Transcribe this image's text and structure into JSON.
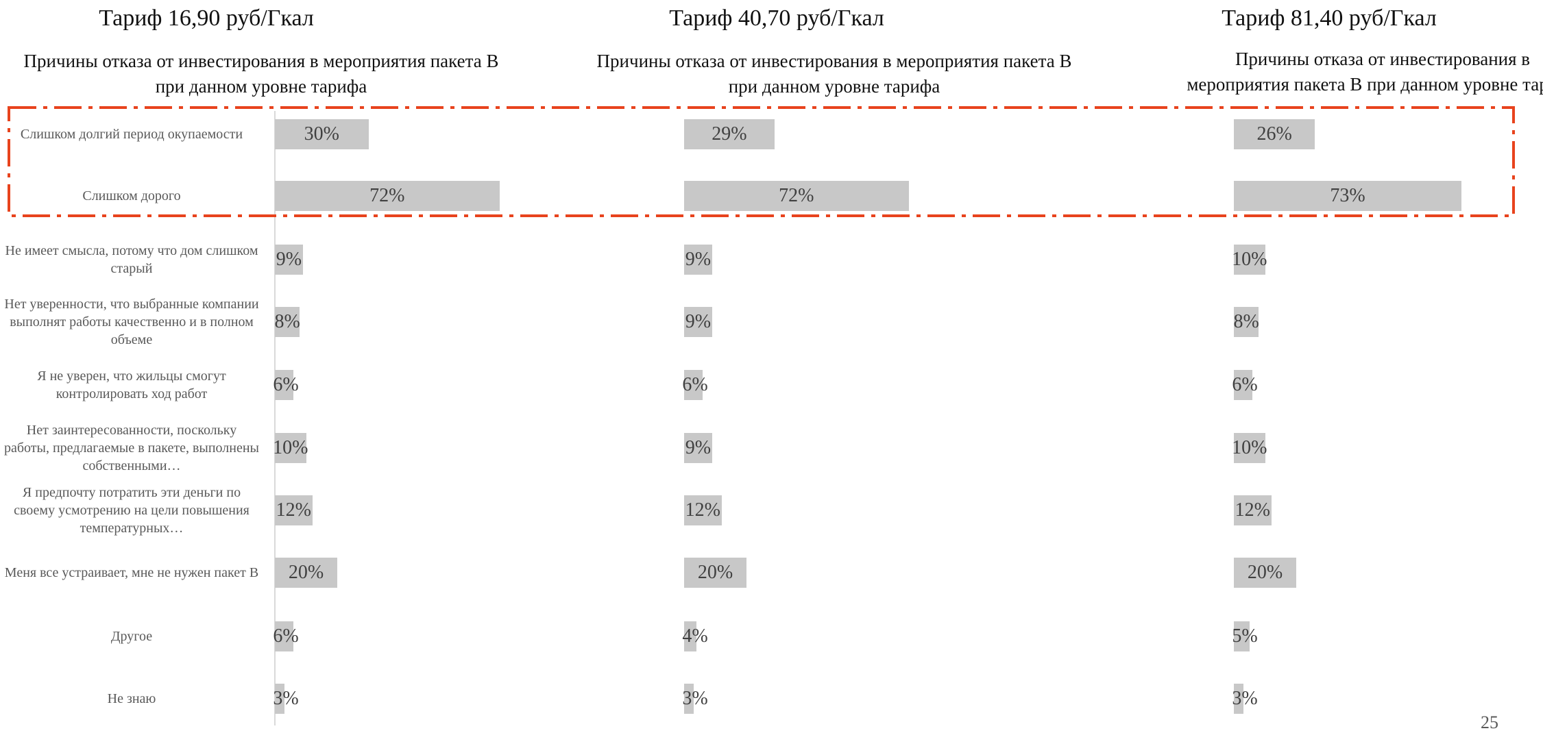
{
  "chart_data": [
    {
      "type": "bar",
      "orientation": "horizontal",
      "title": "Тариф 16,90 руб/Гкал",
      "subtitle": "Причины отказа от инвестирования в мероприятия пакета В при данном уровне тарифа",
      "categories": [
        "Слишком долгий период окупаемости",
        "Слишком дорого",
        "Не имеет смысла, потому что дом слишком старый",
        "Нет уверенности, что выбранные компании выполнят работы качественно и в полном объеме",
        "Я не уверен, что жильцы смогут контролировать ход работ",
        "Нет заинтересованности, поскольку работы, предлагаемые в пакете, выполнены собственными…",
        "Я предпочту потратить эти деньги по своему усмотрению на цели повышения температурных…",
        "Меня все устраивает, мне не нужен пакет  В",
        "Другое",
        "Не знаю"
      ],
      "values": [
        30,
        72,
        9,
        8,
        6,
        10,
        12,
        20,
        6,
        3
      ],
      "value_labels": [
        "30%",
        "72%",
        "9%",
        "8%",
        "6%",
        "10%",
        "12%",
        "20%",
        "6%",
        "3%"
      ],
      "unit": "%",
      "bar_color": "#c8c8c8"
    },
    {
      "type": "bar",
      "orientation": "horizontal",
      "title": "Тариф 40,70 руб/Гкал",
      "subtitle": "Причины отказа от инвестирования в мероприятия пакета В при данном уровне тарифа",
      "values": [
        29,
        72,
        9,
        9,
        6,
        9,
        12,
        20,
        4,
        3
      ],
      "value_labels": [
        "29%",
        "72%",
        "9%",
        "9%",
        "6%",
        "9%",
        "12%",
        "20%",
        "4%",
        "3%"
      ],
      "unit": "%",
      "bar_color": "#c8c8c8"
    },
    {
      "type": "bar",
      "orientation": "horizontal",
      "title": "Тариф 81,40 руб/Гкал",
      "subtitle": "Причины отказа от инвестирования в мероприятия пакета В при данном уровне тарифа",
      "values": [
        26,
        73,
        10,
        8,
        6,
        10,
        12,
        20,
        5,
        3
      ],
      "value_labels": [
        "26%",
        "73%",
        "10%",
        "8%",
        "6%",
        "10%",
        "12%",
        "20%",
        "5%",
        "3%"
      ],
      "unit": "%",
      "bar_color": "#c8c8c8"
    }
  ],
  "highlight": {
    "color": "#e8431d",
    "style": "dash-dot"
  },
  "page_number": "25"
}
